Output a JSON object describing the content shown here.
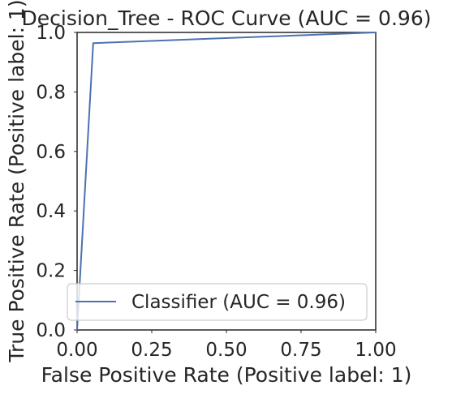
{
  "chart_data": {
    "type": "line",
    "title": "Decision_Tree - ROC Curve (AUC = 0.96)",
    "xlabel": "False Positive Rate (Positive label: 1)",
    "ylabel": "True Positive Rate (Positive label: 1)",
    "xlim": [
      0,
      1
    ],
    "ylim": [
      0,
      1
    ],
    "xticks": [
      "0.00",
      "0.25",
      "0.50",
      "0.75",
      "1.00"
    ],
    "yticks": [
      "0.0",
      "0.2",
      "0.4",
      "0.6",
      "0.8",
      "1.0"
    ],
    "grid": false,
    "legend_position": "lower-right",
    "series": [
      {
        "name": "Classifier (AUC = 0.96)",
        "color": "#4c72b0",
        "x": [
          0.0,
          0.054,
          1.0
        ],
        "y": [
          0.0,
          0.964,
          1.0
        ]
      }
    ]
  }
}
